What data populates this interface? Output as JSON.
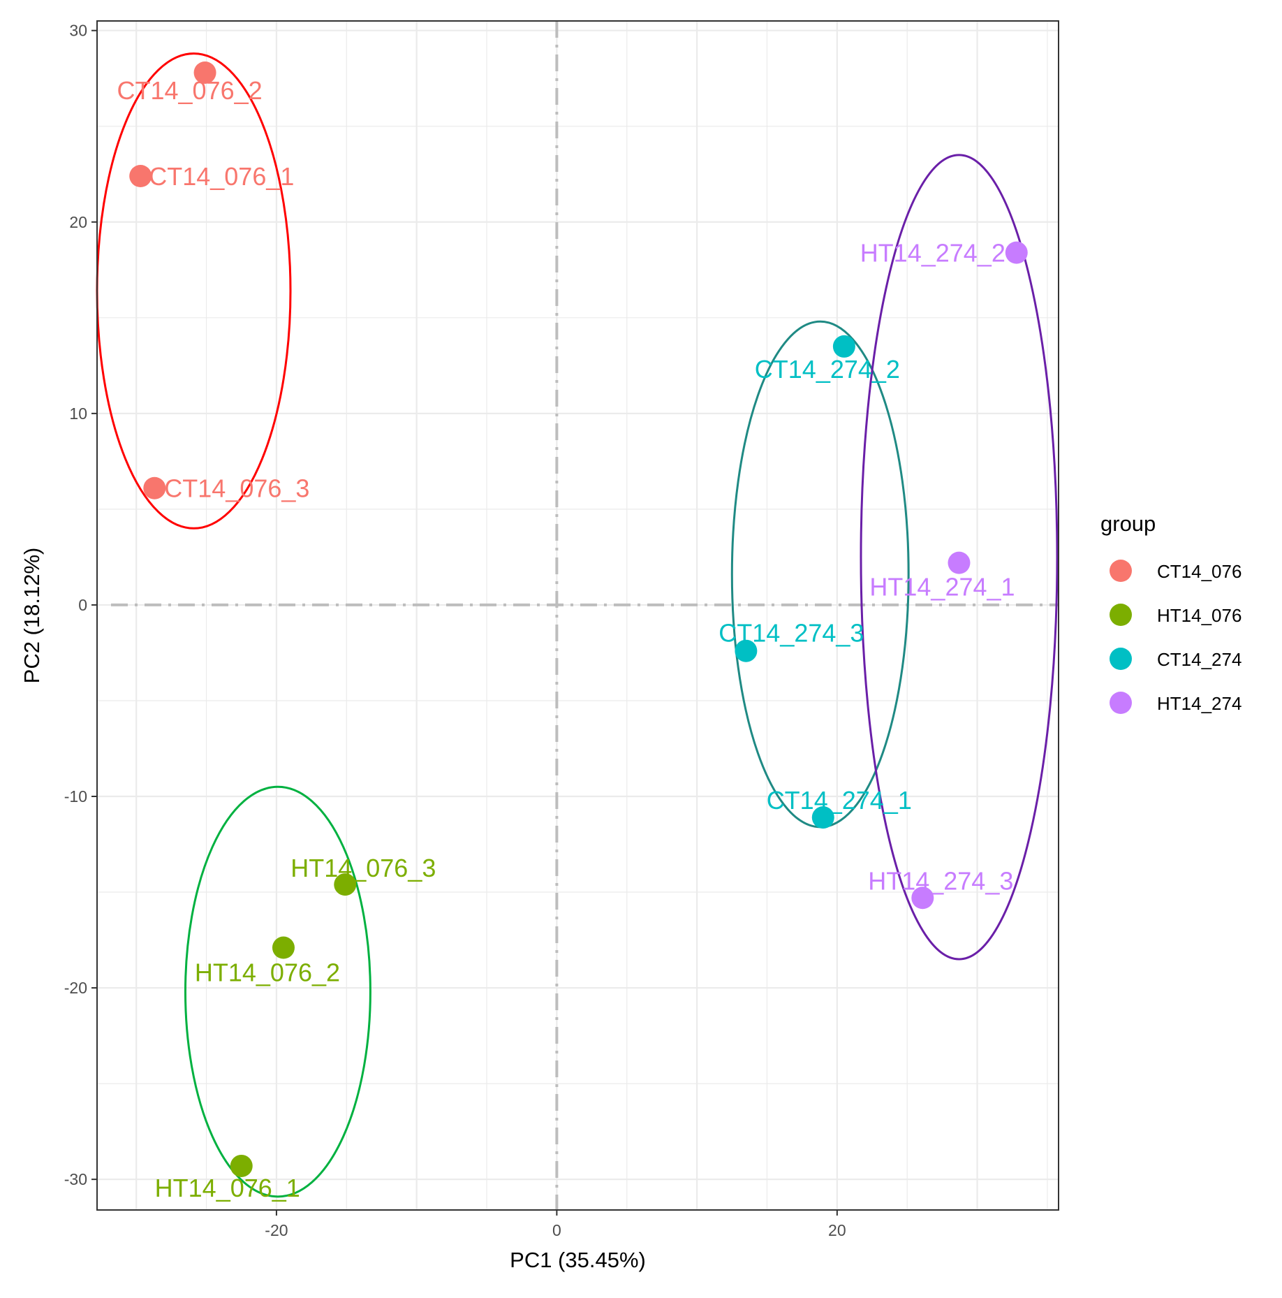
{
  "chart_data": {
    "type": "scatter",
    "title": "",
    "xlabel": "PC1 (35.45%)",
    "ylabel": "PC2 (18.12%)",
    "xlim": [
      -32.8,
      35.8
    ],
    "ylim": [
      -31.6,
      30.5
    ],
    "xticks": [
      -20,
      0,
      20
    ],
    "yticks": [
      -30,
      -20,
      -10,
      0,
      10,
      20,
      30
    ],
    "xtick_labels": [
      "-20",
      "0",
      "20"
    ],
    "ytick_labels": [
      "-30",
      "-20",
      "-10",
      "0",
      "10",
      "20",
      "30"
    ],
    "grid": true,
    "reference_lines": {
      "x": 0,
      "y": 0,
      "color": "#bdbdbd",
      "style": "dot-dash"
    },
    "legend": {
      "title": "group",
      "position": "right",
      "entries": [
        {
          "label": "CT14_076",
          "color": "#F8766D"
        },
        {
          "label": "HT14_076",
          "color": "#7CAE00"
        },
        {
          "label": "CT14_274",
          "color": "#00BFC4"
        },
        {
          "label": "HT14_274",
          "color": "#C77CFF"
        }
      ]
    },
    "series": [
      {
        "name": "CT14_076",
        "color": "#F8766D",
        "ellipse_color": "#FF0000",
        "ellipse": {
          "cx": -25.9,
          "cy": 16.4,
          "rx": 6.9,
          "ry": 12.4
        },
        "points": [
          {
            "label": "CT14_076_1",
            "x": -29.7,
            "y": 22.4
          },
          {
            "label": "CT14_076_2",
            "x": -25.1,
            "y": 27.8
          },
          {
            "label": "CT14_076_3",
            "x": -28.7,
            "y": 6.1
          }
        ]
      },
      {
        "name": "HT14_076",
        "color": "#7CAE00",
        "ellipse_color": "#00B140",
        "ellipse": {
          "cx": -19.9,
          "cy": -20.2,
          "rx": 6.6,
          "ry": 10.7
        },
        "points": [
          {
            "label": "HT14_076_1",
            "x": -22.5,
            "y": -29.3
          },
          {
            "label": "HT14_076_2",
            "x": -19.5,
            "y": -17.9
          },
          {
            "label": "HT14_076_3",
            "x": -15.1,
            "y": -14.6
          }
        ]
      },
      {
        "name": "CT14_274",
        "color": "#00BFC4",
        "ellipse_color": "#1F8A84",
        "ellipse": {
          "cx": 18.8,
          "cy": 1.6,
          "rx": 6.3,
          "ry": 13.2
        },
        "points": [
          {
            "label": "CT14_274_1",
            "x": 19.0,
            "y": -11.1
          },
          {
            "label": "CT14_274_2",
            "x": 20.5,
            "y": 13.5
          },
          {
            "label": "CT14_274_3",
            "x": 13.5,
            "y": -2.4
          }
        ]
      },
      {
        "name": "HT14_274",
        "color": "#C77CFF",
        "ellipse_color": "#6A1FA8",
        "ellipse": {
          "cx": 28.7,
          "cy": 2.5,
          "rx": 7.0,
          "ry": 21.0
        },
        "points": [
          {
            "label": "HT14_274_1",
            "x": 28.7,
            "y": 2.2
          },
          {
            "label": "HT14_274_2",
            "x": 32.8,
            "y": 18.4
          },
          {
            "label": "HT14_274_3",
            "x": 26.1,
            "y": -15.3
          }
        ]
      }
    ]
  }
}
